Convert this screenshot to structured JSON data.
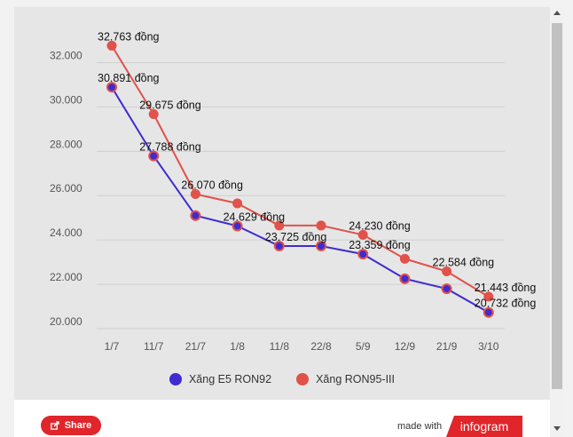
{
  "chart_data": {
    "type": "line",
    "categories": [
      "1/7",
      "11/7",
      "21/7",
      "1/8",
      "11/8",
      "22/8",
      "5/9",
      "12/9",
      "21/9",
      "3/10"
    ],
    "ylim": [
      20000,
      32500
    ],
    "yticks": [
      20000,
      22000,
      24000,
      26000,
      28000,
      30000,
      32000
    ],
    "ytick_labels": [
      "20.000",
      "22.000",
      "24.000",
      "26.000",
      "28.000",
      "30.000",
      "32.000"
    ],
    "grid": true,
    "legend_position": "bottom-center",
    "series": [
      {
        "name": "Xăng E5 RON92",
        "color": "#3f2bd1",
        "values": [
          30891,
          27788,
          25100,
          24629,
          23725,
          23725,
          23359,
          22250,
          21800,
          20732
        ],
        "labels": [
          "30.891 đồng",
          "27.788 đồng",
          "",
          "24.629 đồng",
          "23.725 đồng",
          "",
          "23.359 đồng",
          "",
          "",
          "20.732 đồng"
        ]
      },
      {
        "name": "Xăng RON95-III",
        "color": "#e0524a",
        "values": [
          32763,
          29675,
          26070,
          25650,
          24650,
          24650,
          24230,
          23150,
          22584,
          21443
        ],
        "labels": [
          "32.763 đồng",
          "29.675 đồng",
          "26.070 đồng",
          "",
          "",
          "",
          "24.230 đồng",
          "",
          "22.584 đồng",
          "21.443 đồng"
        ]
      }
    ]
  },
  "footer": {
    "share_label": "Share",
    "made_with": "made with",
    "brand": "infogram"
  }
}
